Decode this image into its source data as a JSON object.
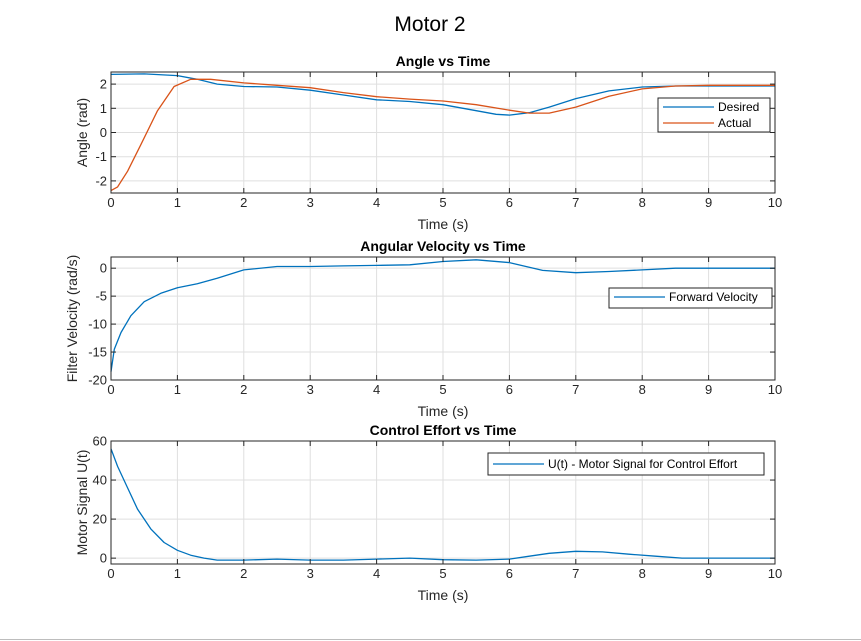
{
  "figure_title": "Motor 2",
  "colors": {
    "blue": "#0072BD",
    "orange": "#D95319",
    "grid": "#dfdfdf",
    "axis": "#262626"
  },
  "chart_data": [
    {
      "type": "line",
      "title": "Angle vs Time",
      "xlabel": "Time (s)",
      "ylabel": "Angle (rad)",
      "xlim": [
        0,
        10
      ],
      "ylim": [
        -2.5,
        2.5
      ],
      "xticks": [
        0,
        1,
        2,
        3,
        4,
        5,
        6,
        7,
        8,
        9,
        10
      ],
      "yticks": [
        -2,
        -1,
        0,
        1,
        2
      ],
      "grid": true,
      "legend": "right",
      "series": [
        {
          "name": "Desired",
          "color": "#0072BD",
          "x": [
            0,
            0.5,
            1,
            1.3,
            1.6,
            2,
            2.5,
            3,
            3.5,
            4,
            4.5,
            5,
            5.5,
            5.8,
            6,
            6.3,
            6.6,
            7,
            7.5,
            8,
            8.5,
            9,
            9.5,
            10
          ],
          "y": [
            2.4,
            2.42,
            2.35,
            2.2,
            2.0,
            1.9,
            1.88,
            1.75,
            1.55,
            1.35,
            1.28,
            1.15,
            0.9,
            0.75,
            0.72,
            0.82,
            1.05,
            1.4,
            1.72,
            1.88,
            1.92,
            1.92,
            1.92,
            1.92
          ]
        },
        {
          "name": "Actual",
          "color": "#D95319",
          "x": [
            0,
            0.1,
            0.25,
            0.45,
            0.7,
            0.95,
            1.2,
            1.5,
            2,
            2.5,
            3,
            3.5,
            4,
            4.5,
            5,
            5.5,
            6,
            6.3,
            6.6,
            7,
            7.5,
            8,
            8.5,
            9,
            9.5,
            10
          ],
          "y": [
            -2.4,
            -2.25,
            -1.6,
            -0.5,
            0.9,
            1.9,
            2.2,
            2.2,
            2.05,
            1.95,
            1.85,
            1.65,
            1.48,
            1.38,
            1.3,
            1.15,
            0.92,
            0.8,
            0.8,
            1.05,
            1.5,
            1.8,
            1.92,
            1.95,
            1.95,
            1.95
          ]
        }
      ]
    },
    {
      "type": "line",
      "title": "Angular Velocity vs Time",
      "xlabel": "Time (s)",
      "ylabel": "Filter Velocity (rad/s)",
      "xlim": [
        0,
        10
      ],
      "ylim": [
        -20,
        2
      ],
      "xticks": [
        0,
        1,
        2,
        3,
        4,
        5,
        6,
        7,
        8,
        9,
        10
      ],
      "yticks": [
        -20,
        -15,
        -10,
        -5,
        0
      ],
      "grid": true,
      "legend": "right",
      "series": [
        {
          "name": "Forward Velocity",
          "color": "#0072BD",
          "x": [
            0,
            0.05,
            0.15,
            0.3,
            0.5,
            0.75,
            1.0,
            1.3,
            1.6,
            2.0,
            2.5,
            3.0,
            3.5,
            4.0,
            4.5,
            5.0,
            5.5,
            6.0,
            6.5,
            7.0,
            7.5,
            8.0,
            8.5,
            9.0,
            9.3,
            9.35,
            10.0
          ],
          "y": [
            -18.5,
            -14.5,
            -11.5,
            -8.5,
            -6.0,
            -4.5,
            -3.5,
            -2.8,
            -1.8,
            -0.3,
            0.3,
            0.3,
            0.4,
            0.5,
            0.6,
            1.2,
            1.5,
            1.0,
            -0.4,
            -0.8,
            -0.6,
            -0.3,
            0.0,
            0.0,
            0.0,
            0.0,
            0.0
          ]
        }
      ]
    },
    {
      "type": "line",
      "title": "Control Effort vs Time",
      "xlabel": "Time (s)",
      "ylabel": "Motor Signal U(t)",
      "xlim": [
        0,
        10
      ],
      "ylim": [
        -3,
        60
      ],
      "xticks": [
        0,
        1,
        2,
        3,
        4,
        5,
        6,
        7,
        8,
        9,
        10
      ],
      "yticks": [
        0,
        20,
        40,
        60
      ],
      "grid": true,
      "legend": "top-right",
      "series": [
        {
          "name": "U(t) - Motor Signal for Control Effort",
          "color": "#0072BD",
          "x": [
            0,
            0.1,
            0.25,
            0.4,
            0.6,
            0.8,
            1.0,
            1.2,
            1.4,
            1.6,
            2.0,
            2.5,
            3.0,
            3.5,
            4.0,
            4.5,
            5.0,
            5.5,
            6.0,
            6.3,
            6.6,
            7.0,
            7.4,
            7.8,
            8.2,
            8.6,
            9.0,
            9.5,
            10.0
          ],
          "y": [
            56,
            47,
            36,
            25,
            15,
            8,
            4,
            1.5,
            0,
            -1,
            -1,
            -0.5,
            -1,
            -1,
            -0.5,
            0,
            -0.8,
            -1,
            -0.5,
            1,
            2.5,
            3.5,
            3.2,
            2,
            1,
            0,
            0,
            0,
            0
          ]
        }
      ]
    }
  ]
}
